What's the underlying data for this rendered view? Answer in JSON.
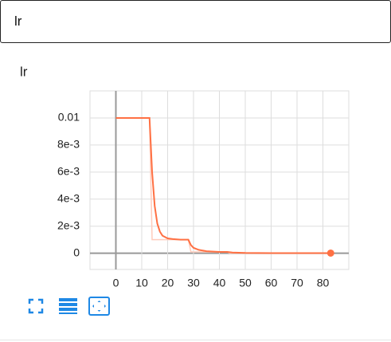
{
  "header": {
    "title": "lr"
  },
  "chart_data": {
    "type": "line",
    "title": "lr",
    "xlim": [
      -10,
      90
    ],
    "xticks": [
      0,
      10,
      20,
      30,
      40,
      50,
      60,
      70,
      80
    ],
    "ylim": [
      -0.0012,
      0.012
    ],
    "yticks": [
      0,
      {
        "value": 0.002,
        "label": "2e-3"
      },
      {
        "value": 0.004,
        "label": "4e-3"
      },
      {
        "value": 0.006,
        "label": "6e-3"
      },
      {
        "value": 0.008,
        "label": "8e-3"
      },
      0.01
    ],
    "grid": true,
    "series": [
      {
        "color": "#ffccbc",
        "x": [
          0,
          13,
          14,
          28,
          29,
          43,
          44,
          83
        ],
        "values": [
          0.01,
          0.01,
          0.001,
          0.001,
          0.0001,
          0.0001,
          1e-05,
          1e-05
        ]
      },
      {
        "color": "#ff7043",
        "x": [
          0,
          13,
          14,
          15,
          16,
          17,
          18,
          20,
          22,
          25,
          28,
          29,
          30,
          32,
          35,
          40,
          43,
          45,
          50,
          60,
          83
        ],
        "values": [
          0.01,
          0.01,
          0.006,
          0.0035,
          0.0022,
          0.0016,
          0.0013,
          0.0011,
          0.00105,
          0.001,
          0.001,
          0.0006,
          0.0004,
          0.00025,
          0.00015,
          0.0001,
          0.0001,
          5e-05,
          2e-05,
          1e-05,
          1e-05
        ]
      }
    ]
  }
}
